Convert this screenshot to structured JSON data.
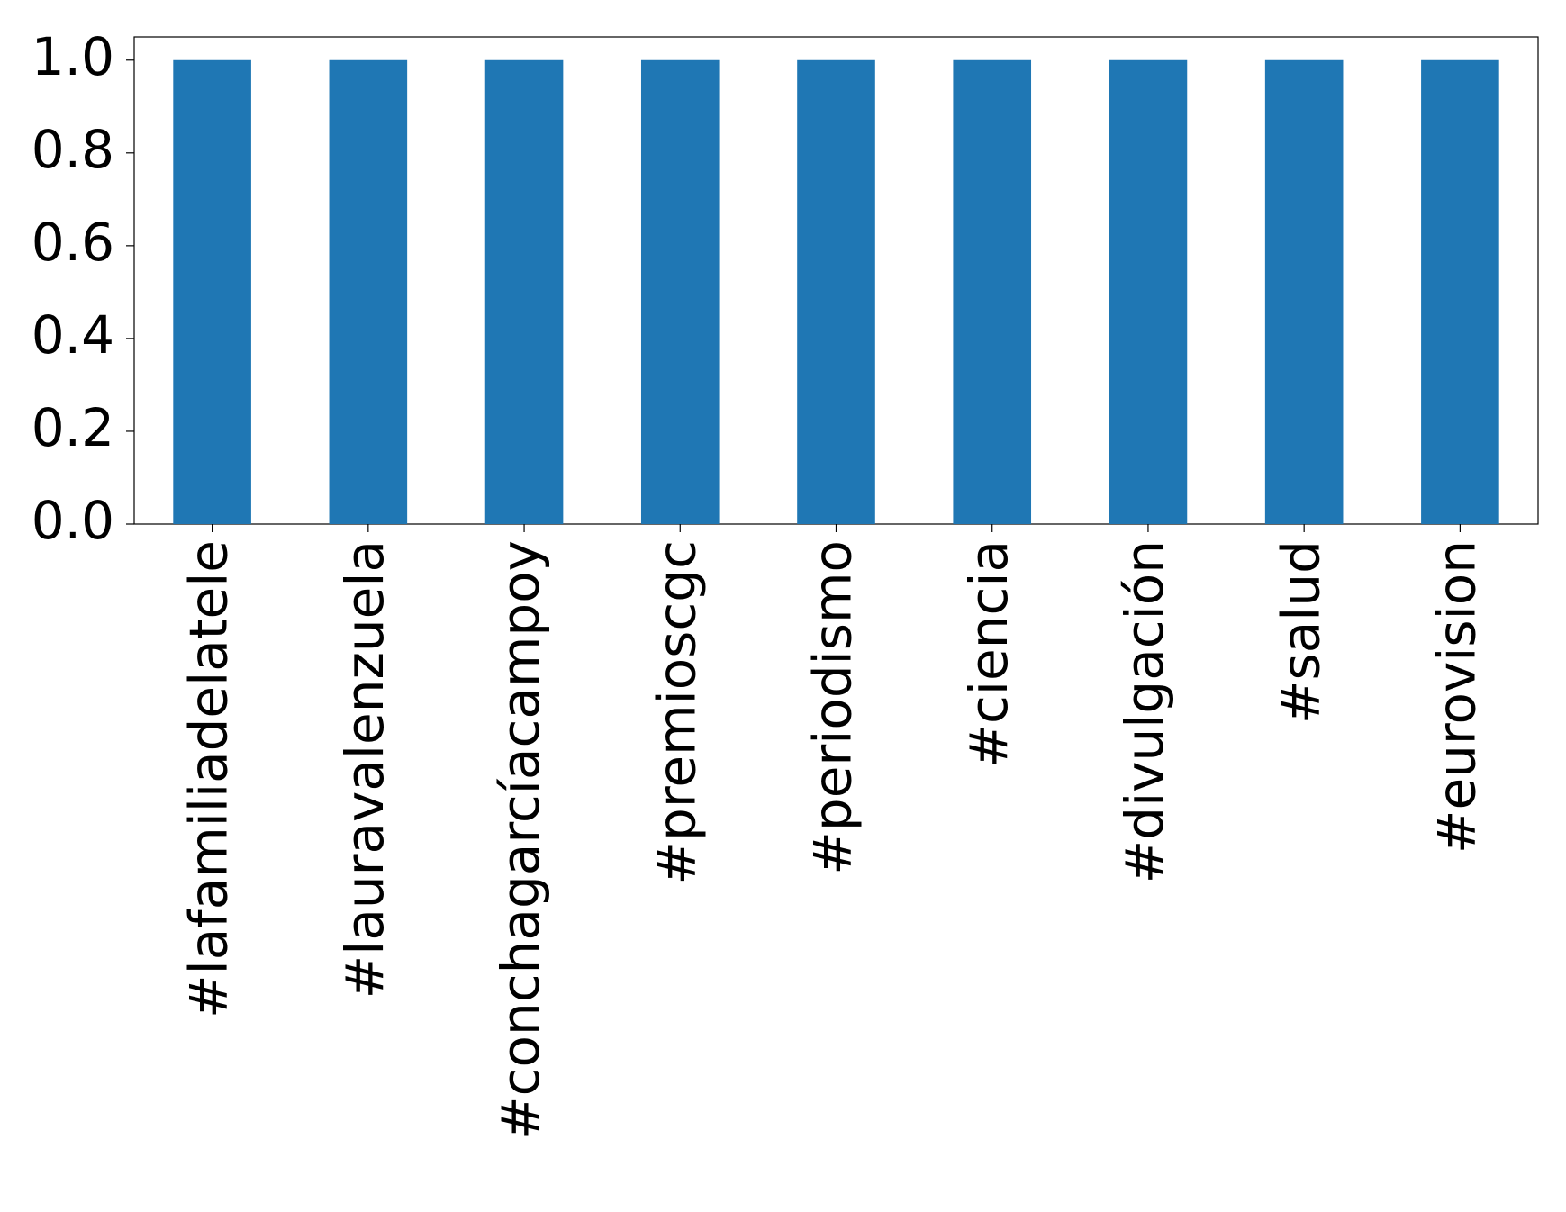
{
  "chart_data": {
    "type": "bar",
    "categories": [
      "#lafamiliadelatele",
      "#lauravalenzuela",
      "#conchagarcíacampoy",
      "#premioscgc",
      "#periodismo",
      "#ciencia",
      "#divulgación",
      "#salud",
      "#eurovision"
    ],
    "values": [
      1,
      1,
      1,
      1,
      1,
      1,
      1,
      1,
      1
    ],
    "color": "#1f77b4",
    "ylim": [
      0,
      1.05
    ],
    "yticks": [
      {
        "value": 0,
        "label": "0.0"
      },
      {
        "value": 0.2,
        "label": "0.2"
      },
      {
        "value": 0.4,
        "label": "0.4"
      },
      {
        "value": 0.6,
        "label": "0.6"
      },
      {
        "value": 0.8,
        "label": "0.8"
      },
      {
        "value": 1,
        "label": "1.0"
      }
    ],
    "grid": false
  }
}
